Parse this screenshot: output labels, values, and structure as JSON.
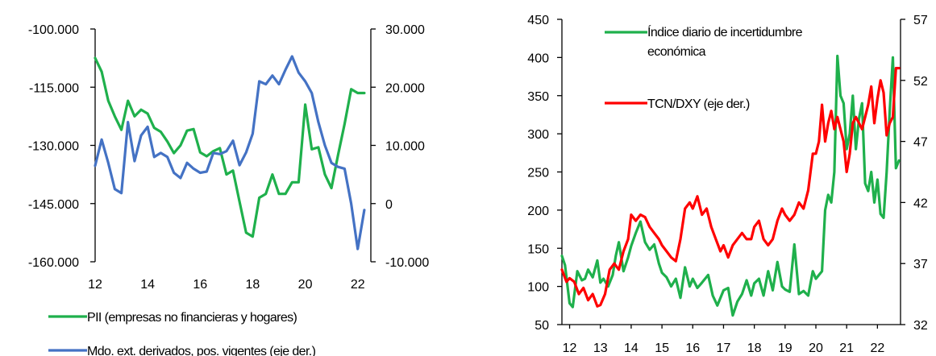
{
  "colors": {
    "green": "#1fb04c",
    "blue": "#4472c4",
    "red": "#ff0000",
    "axis": "#000000"
  },
  "chart_data": [
    {
      "type": "line",
      "title": "",
      "xlabel": "",
      "x_tick_labels": [
        "12",
        "14",
        "16",
        "18",
        "20",
        "22"
      ],
      "xlim": [
        2012,
        2022.5
      ],
      "y_left": {
        "lim": [
          -160000,
          -100000
        ],
        "tick_values": [
          -160000,
          -145000,
          -130000,
          -115000,
          -100000
        ],
        "tick_labels": [
          "-160.000",
          "-145.000",
          "-130.000",
          "-115.000",
          "-100.000"
        ]
      },
      "y_right": {
        "lim": [
          -10000,
          30000
        ],
        "tick_values": [
          -10000,
          0,
          10000,
          20000,
          30000
        ],
        "tick_labels": [
          "-10.000",
          "0",
          "10.000",
          "20.000",
          "30.000"
        ]
      },
      "grid": false,
      "legend_position": "bottom",
      "series": [
        {
          "name": "PII (empresas no financieras y hogares)",
          "axis": "left",
          "color": "green",
          "x": [
            2012.0,
            2012.25,
            2012.5,
            2012.75,
            2013.0,
            2013.25,
            2013.5,
            2013.75,
            2014.0,
            2014.25,
            2014.5,
            2014.75,
            2015.0,
            2015.25,
            2015.5,
            2015.75,
            2016.0,
            2016.25,
            2016.5,
            2016.75,
            2017.0,
            2017.25,
            2017.5,
            2017.75,
            2018.0,
            2018.25,
            2018.5,
            2018.75,
            2019.0,
            2019.25,
            2019.5,
            2019.75,
            2020.0,
            2020.25,
            2020.5,
            2020.75,
            2021.0,
            2021.25,
            2021.5,
            2021.75,
            2022.0,
            2022.25
          ],
          "values": [
            -107500,
            -111000,
            -118500,
            -122500,
            -126000,
            -118500,
            -122500,
            -120800,
            -121800,
            -125500,
            -126500,
            -129000,
            -132000,
            -130000,
            -126200,
            -125800,
            -131800,
            -132800,
            -131500,
            -130700,
            -137500,
            -136500,
            -144500,
            -152500,
            -153500,
            -143500,
            -142500,
            -137500,
            -142500,
            -142500,
            -139500,
            -139500,
            -119500,
            -131000,
            -130500,
            -137500,
            -141000,
            -132500,
            -124500,
            -115500,
            -116500,
            -116500
          ]
        },
        {
          "name": "Mdo. ext. derivados, pos. vigentes (eje der.)",
          "axis": "right",
          "color": "blue",
          "x": [
            2012.0,
            2012.25,
            2012.5,
            2012.75,
            2013.0,
            2013.25,
            2013.5,
            2013.75,
            2014.0,
            2014.25,
            2014.5,
            2014.75,
            2015.0,
            2015.25,
            2015.5,
            2015.75,
            2016.0,
            2016.25,
            2016.5,
            2016.75,
            2017.0,
            2017.25,
            2017.5,
            2017.75,
            2018.0,
            2018.25,
            2018.5,
            2018.75,
            2019.0,
            2019.25,
            2019.5,
            2019.75,
            2020.0,
            2020.25,
            2020.5,
            2020.75,
            2021.0,
            2021.25,
            2021.5,
            2021.75,
            2022.0,
            2022.25
          ],
          "values": [
            6500,
            11000,
            7000,
            2500,
            1800,
            14000,
            7300,
            11700,
            13200,
            8000,
            8700,
            8000,
            5300,
            4400,
            7000,
            6000,
            5300,
            5500,
            8700,
            8500,
            9000,
            10800,
            6600,
            8800,
            12000,
            21000,
            20500,
            22000,
            20500,
            23000,
            25300,
            22500,
            21000,
            19000,
            14000,
            10000,
            7000,
            6300,
            6000,
            0,
            -7800,
            -1100
          ]
        }
      ]
    },
    {
      "type": "line",
      "title": "",
      "xlabel": "",
      "x_tick_labels": [
        "12",
        "13",
        "14",
        "15",
        "16",
        "17",
        "18",
        "19",
        "20",
        "21",
        "22"
      ],
      "xlim": [
        2011.75,
        2022.75
      ],
      "y_left": {
        "lim": [
          50,
          450
        ],
        "tick_values": [
          50,
          100,
          150,
          200,
          250,
          300,
          350,
          400,
          450
        ],
        "tick_labels": [
          "50",
          "100",
          "150",
          "200",
          "250",
          "300",
          "350",
          "400",
          "450"
        ]
      },
      "y_right": {
        "lim": [
          32,
          57
        ],
        "tick_values": [
          32,
          37,
          42,
          47,
          52,
          57
        ],
        "tick_labels": [
          "32",
          "37",
          "42",
          "47",
          "52",
          "57"
        ]
      },
      "grid": false,
      "legend_position": "top-left",
      "series": [
        {
          "name": "Índice diario de incertidumbre económica",
          "axis": "left",
          "color": "green",
          "x": [
            2011.75,
            2011.85,
            2012.0,
            2012.1,
            2012.25,
            2012.4,
            2012.5,
            2012.6,
            2012.75,
            2012.9,
            2013.0,
            2013.1,
            2013.25,
            2013.4,
            2013.5,
            2013.6,
            2013.75,
            2013.9,
            2014.0,
            2014.15,
            2014.3,
            2014.45,
            2014.6,
            2014.75,
            2014.9,
            2015.0,
            2015.15,
            2015.3,
            2015.45,
            2015.6,
            2015.75,
            2015.9,
            2016.0,
            2016.15,
            2016.3,
            2016.5,
            2016.65,
            2016.8,
            2017.0,
            2017.15,
            2017.3,
            2017.45,
            2017.6,
            2017.75,
            2017.9,
            2018.0,
            2018.15,
            2018.3,
            2018.45,
            2018.6,
            2018.75,
            2018.9,
            2019.0,
            2019.15,
            2019.3,
            2019.45,
            2019.6,
            2019.75,
            2019.9,
            2020.0,
            2020.1,
            2020.2,
            2020.3,
            2020.4,
            2020.5,
            2020.6,
            2020.7,
            2020.8,
            2020.9,
            2021.0,
            2021.1,
            2021.2,
            2021.3,
            2021.4,
            2021.5,
            2021.6,
            2021.7,
            2021.8,
            2021.9,
            2022.0,
            2022.1,
            2022.2,
            2022.3,
            2022.4,
            2022.5,
            2022.6,
            2022.7
          ],
          "values": [
            140,
            128,
            78,
            73,
            120,
            108,
            110,
            122,
            112,
            134,
            105,
            110,
            100,
            115,
            140,
            158,
            120,
            138,
            153,
            170,
            185,
            158,
            148,
            155,
            130,
            118,
            112,
            100,
            110,
            85,
            125,
            100,
            110,
            98,
            105,
            115,
            88,
            75,
            95,
            98,
            62,
            80,
            90,
            108,
            88,
            104,
            110,
            88,
            120,
            95,
            132,
            100,
            96,
            93,
            155,
            90,
            94,
            88,
            120,
            110,
            115,
            120,
            200,
            220,
            210,
            250,
            402,
            350,
            340,
            280,
            300,
            350,
            280,
            320,
            340,
            235,
            225,
            250,
            210,
            240,
            195,
            190,
            250,
            330,
            400,
            255,
            265
          ]
        },
        {
          "name": "TCN/DXY (eje der.)",
          "axis": "right",
          "color": "red",
          "x": [
            2011.75,
            2011.9,
            2012.0,
            2012.15,
            2012.3,
            2012.45,
            2012.6,
            2012.75,
            2012.9,
            2013.0,
            2013.15,
            2013.3,
            2013.45,
            2013.6,
            2013.75,
            2013.9,
            2014.0,
            2014.15,
            2014.3,
            2014.45,
            2014.6,
            2014.75,
            2014.9,
            2015.0,
            2015.15,
            2015.3,
            2015.45,
            2015.6,
            2015.75,
            2015.9,
            2016.0,
            2016.15,
            2016.3,
            2016.45,
            2016.6,
            2016.75,
            2016.9,
            2017.0,
            2017.15,
            2017.3,
            2017.45,
            2017.6,
            2017.75,
            2017.9,
            2018.0,
            2018.15,
            2018.3,
            2018.45,
            2018.6,
            2018.75,
            2018.9,
            2019.0,
            2019.15,
            2019.3,
            2019.45,
            2019.6,
            2019.75,
            2019.9,
            2020.0,
            2020.1,
            2020.2,
            2020.3,
            2020.4,
            2020.5,
            2020.6,
            2020.7,
            2020.8,
            2020.9,
            2021.0,
            2021.1,
            2021.2,
            2021.3,
            2021.4,
            2021.5,
            2021.6,
            2021.7,
            2021.8,
            2021.9,
            2022.0,
            2022.1,
            2022.2,
            2022.3,
            2022.4,
            2022.5,
            2022.6,
            2022.7
          ],
          "values": [
            36.5,
            35.5,
            35.8,
            35.5,
            34.5,
            35.0,
            34.0,
            34.5,
            33.5,
            33.6,
            34.5,
            36.5,
            37.0,
            36.5,
            38.0,
            39.0,
            41.0,
            40.5,
            41.0,
            40.8,
            40.0,
            39.5,
            39.0,
            38.5,
            38.0,
            37.5,
            37.2,
            39.0,
            41.5,
            42.0,
            41.5,
            42.5,
            41.0,
            41.5,
            40.0,
            39.0,
            38.0,
            38.5,
            37.5,
            38.5,
            39.0,
            39.5,
            39.0,
            39.0,
            40.0,
            40.5,
            39.0,
            38.5,
            39.0,
            40.5,
            41.5,
            41.0,
            40.5,
            41.0,
            42.0,
            41.5,
            43.0,
            46.0,
            46.0,
            47.0,
            50.0,
            47.0,
            48.5,
            49.5,
            48.0,
            49.0,
            48.0,
            47.0,
            44.5,
            46.0,
            48.5,
            49.0,
            48.5,
            48.0,
            49.0,
            50.0,
            51.5,
            48.5,
            50.5,
            52.0,
            51.0,
            47.5,
            48.5,
            49.0,
            53.0,
            53.0
          ]
        }
      ]
    }
  ]
}
